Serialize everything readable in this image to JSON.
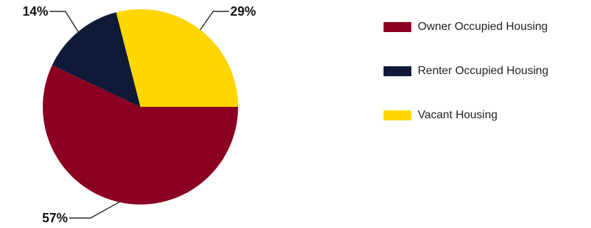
{
  "chart_data": {
    "type": "pie",
    "categories": [
      "Owner Occupied Housing",
      "Renter Occupied Housing",
      "Vacant Housing"
    ],
    "values": [
      57,
      14,
      29
    ],
    "data_labels": [
      "57%",
      "14%",
      "29%"
    ],
    "colors": [
      "#8b0022",
      "#0e1a36",
      "#ffd600"
    ],
    "start_angle_deg": 0,
    "direction": "clockwise",
    "legend_position": "right"
  }
}
